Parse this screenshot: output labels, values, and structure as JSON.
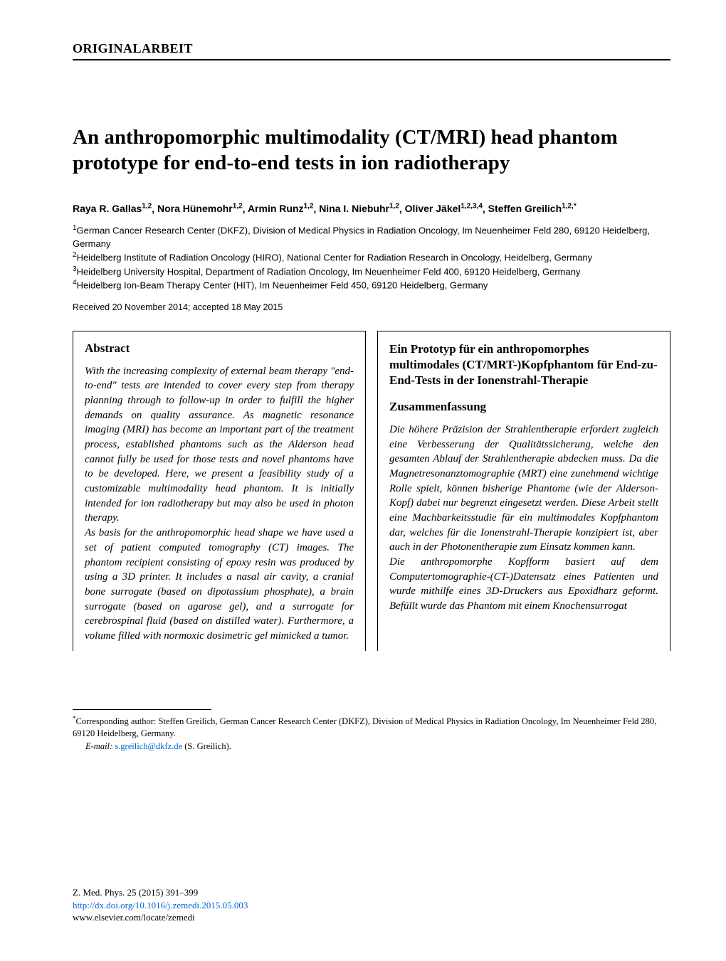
{
  "section_label": "ORIGINALARBEIT",
  "title": "An anthropomorphic multimodality (CT/MRI) head phantom prototype for end-to-end tests in ion radiotherapy",
  "authors": [
    {
      "name": "Raya R. Gallas",
      "sup": "1,2"
    },
    {
      "name": "Nora Hünemohr",
      "sup": "1,2"
    },
    {
      "name": "Armin Runz",
      "sup": "1,2"
    },
    {
      "name": "Nina I. Niebuhr",
      "sup": "1,2"
    },
    {
      "name": "Oliver Jäkel",
      "sup": "1,2,3,4"
    },
    {
      "name": "Steffen Greilich",
      "sup": "1,2,*"
    }
  ],
  "affiliations": [
    {
      "num": "1",
      "text": "German Cancer Research Center (DKFZ), Division of Medical Physics in Radiation Oncology, Im Neuenheimer Feld 280, 69120 Heidelberg, Germany"
    },
    {
      "num": "2",
      "text": "Heidelberg Institute of Radiation Oncology (HIRO), National Center for Radiation Research in Oncology, Heidelberg, Germany"
    },
    {
      "num": "3",
      "text": "Heidelberg University Hospital, Department of Radiation Oncology, Im Neuenheimer Feld 400, 69120 Heidelberg, Germany"
    },
    {
      "num": "4",
      "text": "Heidelberg Ion-Beam Therapy Center (HIT), Im Neuenheimer Feld 450, 69120 Heidelberg, Germany"
    }
  ],
  "dates": "Received 20 November 2014; accepted 18 May 2015",
  "abstract": {
    "heading": "Abstract",
    "p1": "With the increasing complexity of external beam therapy \"end-to-end\" tests are intended to cover every step from therapy planning through to follow-up in order to fulfill the higher demands on quality assurance. As magnetic resonance imaging (MRI) has become an important part of the treatment process, established phantoms such as the Alderson head cannot fully be used for those tests and novel phantoms have to be developed. Here, we present a feasibility study of a customizable multimodality head phantom. It is initially intended for ion radiotherapy but may also be used in photon therapy.",
    "p2": "As basis for the anthropomorphic head shape we have used a set of patient computed tomography (CT) images. The phantom recipient consisting of epoxy resin was produced by using a 3D printer. It includes a nasal air cavity, a cranial bone surrogate (based on dipotassium phosphate), a brain surrogate (based on agarose gel), and a surrogate for cerebrospinal fluid (based on distilled water). Furthermore, a volume filled with normoxic dosimetric gel mimicked a tumor."
  },
  "zusammen": {
    "de_title": "Ein Prototyp für ein anthropomorphes multimodales (CT/MRT-)Kopfphantom für End-zu-End-Tests in der Ionenstrahl-Therapie",
    "heading": "Zusammenfassung",
    "p1": "Die höhere Präzision der Strahlentherapie erfordert zugleich eine Verbesserung der Qualitätssicherung, welche den gesamten Ablauf der Strahlentherapie abdecken muss. Da die Magnetresonanztomographie (MRT) eine zunehmend wichtige Rolle spielt, können bisherige Phantome (wie der Alderson-Kopf) dabei nur begrenzt eingesetzt werden. Diese Arbeit stellt eine Machbarkeitsstudie für ein multimodales Kopfphantom dar, welches für die Ionenstrahl-Therapie konzipiert ist, aber auch in der Photonentherapie zum Einsatz kommen kann.",
    "p2": "Die anthropomorphe Kopfform basiert auf dem Computertomographie-(CT-)Datensatz eines Patienten und wurde mithilfe eines 3D-Druckers aus Epoxidharz geformt. Befüllt wurde das Phantom mit einem Knochensurrogat"
  },
  "footnote": {
    "corr_label": "Corresponding author:",
    "corr_text": " Steffen Greilich, German Cancer Research Center (DKFZ), Division of Medical Physics in Radiation Oncology, Im Neuenheimer Feld 280, 69120 Heidelberg, Germany.",
    "email_label": "E-mail:",
    "email": "s.greilich@dkfz.de",
    "email_suffix": " (S. Greilich)."
  },
  "footer": {
    "citation": "Z. Med. Phys. 25 (2015) 391–399",
    "doi": "http://dx.doi.org/10.1016/j.zemedi.2015.05.003",
    "elsevier": "www.elsevier.com/locate/zemedi"
  },
  "colors": {
    "link": "#0066cc",
    "text": "#000000",
    "background": "#ffffff",
    "rule": "#000000"
  },
  "fonts": {
    "serif": "Times New Roman",
    "sans": "Arial"
  }
}
